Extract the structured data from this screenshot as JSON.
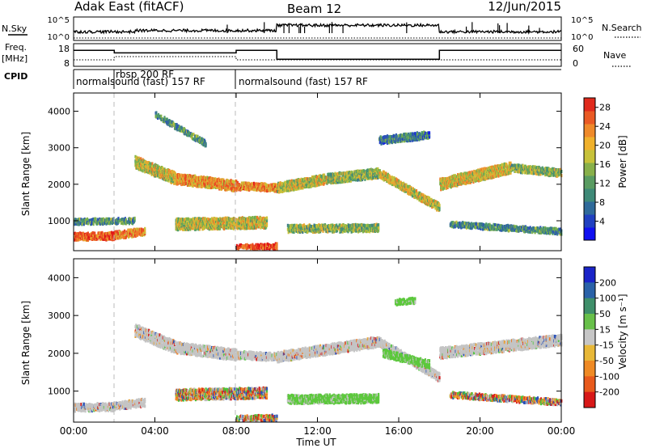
{
  "header": {
    "station": "Adak East (fitACF)",
    "beam": "Beam 12",
    "date": "12/Jun/2015"
  },
  "panels": {
    "nsky_label": "N.Sky",
    "nsky_ticks": [
      "10^5",
      "10^0"
    ],
    "nsearch_label": "N.Search",
    "nsearch_ticks": [
      "10^5",
      "10^0"
    ],
    "freq_label": "Freq.",
    "freq_unit": "[MHz]",
    "freq_ticks": [
      "18",
      "8"
    ],
    "nave_label": "Nave",
    "nave_ticks": [
      "60",
      "0"
    ],
    "cpid_label": "CPID",
    "cpid_programs": [
      {
        "name": "normalsound (fast) 157 RF",
        "start_hour": 0
      },
      {
        "name": "rbsp 200 RF",
        "start_hour": 2
      },
      {
        "name": "normalsound (fast) 157 RF",
        "start_hour": 8
      }
    ],
    "freq_segments": [
      {
        "start": 0,
        "end": 2,
        "level": 0.72
      },
      {
        "start": 2,
        "end": 8,
        "level": 0.6
      },
      {
        "start": 8,
        "end": 10,
        "level": 0.72
      },
      {
        "start": 10,
        "end": 18,
        "level": 0.3
      },
      {
        "start": 18,
        "end": 24,
        "level": 0.72
      }
    ]
  },
  "chart_data": [
    {
      "type": "heatmap",
      "name": "power",
      "xlabel": "",
      "ylabel": "Slant Range [km]",
      "x_range": [
        0,
        24
      ],
      "y_range": [
        180,
        4500
      ],
      "x_ticks": [
        "00:00",
        "04:00",
        "08:00",
        "12:00",
        "16:00",
        "20:00",
        "00:00"
      ],
      "y_ticks": [
        1000,
        2000,
        3000,
        4000
      ],
      "colorbar": {
        "label": "Power [dB]",
        "ticks": [
          "4",
          "8",
          "12",
          "16",
          "20",
          "24",
          "28"
        ],
        "range": [
          0,
          30
        ]
      },
      "scatter_bands": [
        {
          "t0": 0.0,
          "t1": 2.0,
          "r0": 560,
          "r1": 580,
          "width": 200,
          "level": 0.85
        },
        {
          "t0": 2.0,
          "t1": 3.5,
          "r0": 600,
          "r1": 700,
          "width": 200,
          "level": 0.75
        },
        {
          "t0": 0.0,
          "t1": 3.0,
          "r0": 970,
          "r1": 1000,
          "width": 150,
          "level": 0.3
        },
        {
          "t0": 3.0,
          "t1": 5.0,
          "r0": 2600,
          "r1": 2150,
          "width": 320,
          "level": 0.55
        },
        {
          "t0": 5.0,
          "t1": 8.0,
          "r0": 2150,
          "r1": 1950,
          "width": 280,
          "level": 0.7
        },
        {
          "t0": 8.0,
          "t1": 10.0,
          "r0": 1950,
          "r1": 1900,
          "width": 200,
          "level": 0.75
        },
        {
          "t0": 10.0,
          "t1": 12.5,
          "r0": 1900,
          "r1": 2150,
          "width": 260,
          "level": 0.55
        },
        {
          "t0": 12.5,
          "t1": 15.0,
          "r0": 2150,
          "r1": 2300,
          "width": 260,
          "level": 0.45
        },
        {
          "t0": 15.0,
          "t1": 18.0,
          "r0": 2300,
          "r1": 1350,
          "width": 220,
          "level": 0.55
        },
        {
          "t0": 18.0,
          "t1": 21.5,
          "r0": 2000,
          "r1": 2450,
          "width": 300,
          "level": 0.6
        },
        {
          "t0": 21.5,
          "t1": 24.0,
          "r0": 2450,
          "r1": 2300,
          "width": 200,
          "level": 0.45
        },
        {
          "t0": 5.0,
          "t1": 9.5,
          "r0": 900,
          "r1": 950,
          "width": 300,
          "level": 0.55
        },
        {
          "t0": 10.5,
          "t1": 15.0,
          "r0": 780,
          "r1": 800,
          "width": 200,
          "level": 0.45
        },
        {
          "t0": 18.5,
          "t1": 24.0,
          "r0": 900,
          "r1": 700,
          "width": 150,
          "level": 0.3
        },
        {
          "t0": 8.0,
          "t1": 10.0,
          "r0": 260,
          "r1": 300,
          "width": 150,
          "level": 0.9
        },
        {
          "t0": 15.0,
          "t1": 17.5,
          "r0": 3200,
          "r1": 3350,
          "width": 200,
          "level": 0.25
        },
        {
          "t0": 4.0,
          "t1": 6.5,
          "r0": 3900,
          "r1": 3100,
          "width": 150,
          "level": 0.3
        }
      ]
    },
    {
      "type": "heatmap",
      "name": "velocity",
      "xlabel": "Time UT",
      "ylabel": "Slant Range [km]",
      "x_range": [
        0,
        24
      ],
      "y_range": [
        180,
        4500
      ],
      "x_ticks": [
        "00:00",
        "04:00",
        "08:00",
        "12:00",
        "16:00",
        "20:00",
        "00:00"
      ],
      "y_ticks": [
        1000,
        2000,
        3000,
        4000
      ],
      "colorbar": {
        "label": "Velocity [m s⁻¹]",
        "ticks": [
          "200",
          "100",
          "50",
          "15",
          "-15",
          "-50",
          "-100",
          "-200"
        ]
      },
      "scatter_bands": [
        {
          "t0": 0.0,
          "t1": 2.0,
          "r0": 560,
          "r1": 580,
          "width": 200,
          "class": "gray"
        },
        {
          "t0": 2.0,
          "t1": 3.5,
          "r0": 600,
          "r1": 700,
          "width": 200,
          "class": "gray"
        },
        {
          "t0": 3.0,
          "t1": 5.0,
          "r0": 2600,
          "r1": 2150,
          "width": 320,
          "class": "gray"
        },
        {
          "t0": 5.0,
          "t1": 8.0,
          "r0": 2150,
          "r1": 1950,
          "width": 280,
          "class": "gray"
        },
        {
          "t0": 8.0,
          "t1": 10.0,
          "r0": 1950,
          "r1": 1900,
          "width": 200,
          "class": "gray"
        },
        {
          "t0": 10.0,
          "t1": 15.0,
          "r0": 1900,
          "r1": 2300,
          "width": 260,
          "class": "gray"
        },
        {
          "t0": 15.0,
          "t1": 18.0,
          "r0": 2300,
          "r1": 1350,
          "width": 220,
          "class": "gray"
        },
        {
          "t0": 18.0,
          "t1": 24.0,
          "r0": 2000,
          "r1": 2350,
          "width": 280,
          "class": "gray"
        },
        {
          "t0": 10.5,
          "t1": 15.0,
          "r0": 780,
          "r1": 800,
          "width": 220,
          "class": "green"
        },
        {
          "t0": 15.2,
          "t1": 17.5,
          "r0": 2000,
          "r1": 1700,
          "width": 200,
          "class": "green"
        },
        {
          "t0": 15.8,
          "t1": 16.8,
          "r0": 3350,
          "r1": 3400,
          "width": 150,
          "class": "green"
        },
        {
          "t0": 5.0,
          "t1": 9.5,
          "r0": 900,
          "r1": 950,
          "width": 280,
          "class": "mixed"
        },
        {
          "t0": 18.5,
          "t1": 24.0,
          "r0": 900,
          "r1": 700,
          "width": 150,
          "class": "mixed"
        },
        {
          "t0": 8.0,
          "t1": 10.0,
          "r0": 260,
          "r1": 300,
          "width": 150,
          "class": "mixed"
        }
      ]
    }
  ]
}
